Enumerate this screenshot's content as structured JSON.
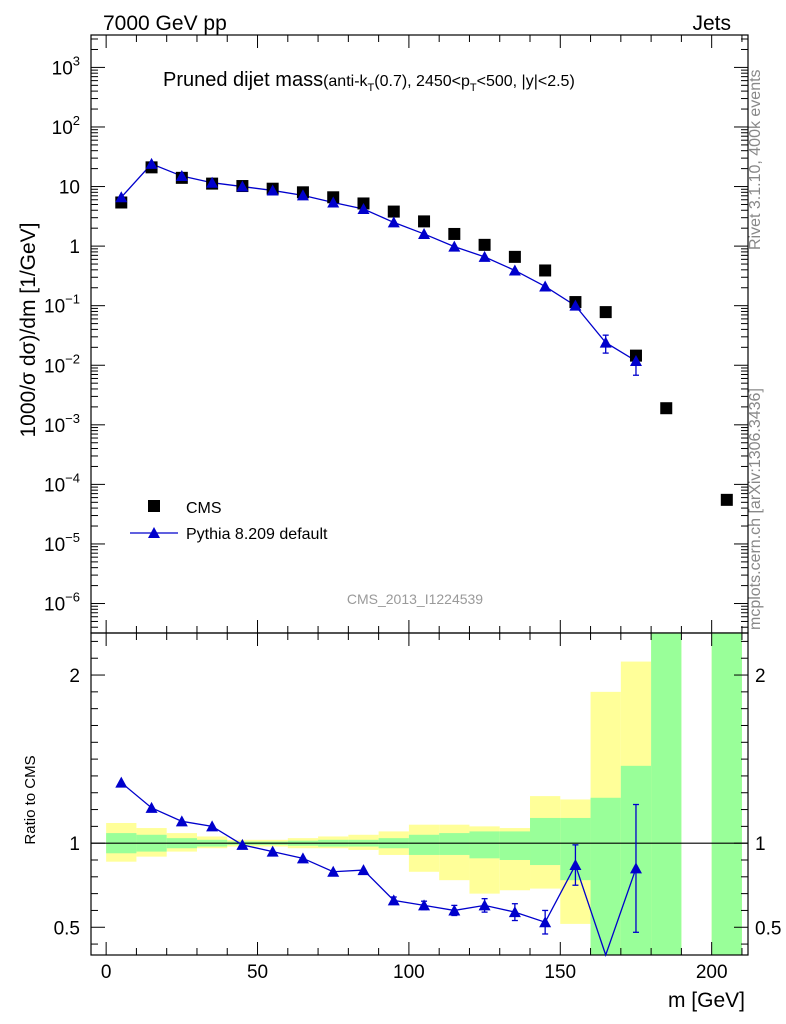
{
  "header": {
    "left": "7000 GeV pp",
    "right": "Jets"
  },
  "side": {
    "rivet": "Rivet 3.1.10,  400k events",
    "mcplots": "mcplots.cern.ch [arXiv:1306.3436]"
  },
  "chart_data": [
    {
      "type": "scatter",
      "title": "Pruned dijet mass",
      "subtitle_parts": [
        "(anti-k",
        "T",
        "(0.7), 2450<p",
        "T",
        "<500, |y|<2.5)"
      ],
      "ylabel": "1000/σ dσ)/dm [1/GeV]",
      "ylog": true,
      "xlim": [
        -5,
        212
      ],
      "ylim": [
        3.2e-07,
        3500
      ],
      "yticks": [
        {
          "v": 1e-06,
          "base": "10",
          "exp": "−6"
        },
        {
          "v": 1e-05,
          "base": "10",
          "exp": "−5"
        },
        {
          "v": 0.0001,
          "base": "10",
          "exp": "−4"
        },
        {
          "v": 0.001,
          "base": "10",
          "exp": "−3"
        },
        {
          "v": 0.01,
          "base": "10",
          "exp": "−2"
        },
        {
          "v": 0.1,
          "base": "10",
          "exp": "−1"
        },
        {
          "v": 1,
          "base": "1",
          "exp": ""
        },
        {
          "v": 10,
          "base": "10",
          "exp": ""
        },
        {
          "v": 100,
          "base": "10",
          "exp": "2"
        },
        {
          "v": 1000,
          "base": "10",
          "exp": "3"
        }
      ],
      "watermark": "CMS_2013_I1224539",
      "legend_position": "bottom-left",
      "series": [
        {
          "name": "CMS",
          "marker": "square",
          "color": "#000000",
          "x": [
            5,
            15,
            25,
            35,
            45,
            55,
            65,
            75,
            85,
            95,
            105,
            115,
            125,
            135,
            145,
            155,
            165,
            175,
            185,
            205
          ],
          "y": [
            5.4,
            21,
            14,
            11.2,
            10.2,
            9.2,
            8.0,
            6.6,
            5.2,
            3.8,
            2.6,
            1.6,
            1.05,
            0.66,
            0.39,
            0.115,
            0.078,
            0.0145,
            0.0019,
            5.5e-05
          ]
        },
        {
          "name": "Pythia 8.209 default",
          "marker": "triangle",
          "color": "#0000cc",
          "x": [
            5,
            15,
            25,
            35,
            45,
            55,
            65,
            75,
            85,
            95,
            105,
            115,
            125,
            135,
            145,
            155,
            165,
            175
          ],
          "y": [
            6.6,
            24,
            15,
            11.6,
            10.0,
            8.6,
            7.1,
            5.4,
            4.2,
            2.5,
            1.6,
            0.98,
            0.66,
            0.39,
            0.21,
            0.1,
            0.024,
            0.0118
          ],
          "yerr": [
            0,
            0,
            0,
            0,
            0,
            0,
            0,
            0,
            0,
            0,
            0,
            0,
            0,
            0,
            0,
            0,
            0.008,
            0.005
          ]
        }
      ]
    },
    {
      "type": "line",
      "ylabel": "Ratio to CMS",
      "xlabel": "m [GeV]",
      "xlim": [
        -5,
        212
      ],
      "ylim": [
        0.335,
        2.25
      ],
      "xticks": [
        0,
        50,
        100,
        150,
        200
      ],
      "yticks": [
        0.5,
        1,
        2
      ],
      "reference_line": 1,
      "bands": {
        "edges": [
          0,
          10,
          20,
          30,
          40,
          50,
          60,
          70,
          80,
          90,
          100,
          110,
          120,
          130,
          140,
          150,
          160,
          170,
          180,
          190,
          200,
          210
        ],
        "yellow": [
          [
            0.89,
            1.12
          ],
          [
            0.92,
            1.09
          ],
          [
            0.95,
            1.06
          ],
          [
            0.97,
            1.04
          ],
          [
            0.98,
            1.02
          ],
          [
            0.98,
            1.02
          ],
          [
            0.97,
            1.03
          ],
          [
            0.97,
            1.04
          ],
          [
            0.96,
            1.05
          ],
          [
            0.93,
            1.07
          ],
          [
            0.83,
            1.11
          ],
          [
            0.78,
            1.11
          ],
          [
            0.7,
            1.1
          ],
          [
            0.72,
            1.09
          ],
          [
            0.73,
            1.28
          ],
          [
            0.52,
            1.26
          ],
          [
            0.335,
            1.9
          ],
          [
            0.335,
            2.08
          ],
          [
            0.335,
            2.25
          ],
          null,
          [
            0.335,
            2.25
          ]
        ],
        "green": [
          [
            0.94,
            1.06
          ],
          [
            0.95,
            1.05
          ],
          [
            0.97,
            1.03
          ],
          [
            0.98,
            1.02
          ],
          [
            0.99,
            1.01
          ],
          [
            0.99,
            1.01
          ],
          [
            0.985,
            1.015
          ],
          [
            0.98,
            1.02
          ],
          [
            0.98,
            1.02
          ],
          [
            0.97,
            1.03
          ],
          [
            0.93,
            1.05
          ],
          [
            0.93,
            1.06
          ],
          [
            0.91,
            1.07
          ],
          [
            0.9,
            1.07
          ],
          [
            0.87,
            1.15
          ],
          [
            0.78,
            1.15
          ],
          [
            0.335,
            1.27
          ],
          [
            0.335,
            1.46
          ],
          [
            0.335,
            2.25
          ],
          null,
          [
            0.335,
            2.25
          ]
        ]
      },
      "series": [
        {
          "name": "Pythia 8.209 default",
          "color": "#0000cc",
          "x": [
            5,
            15,
            25,
            35,
            45,
            55,
            65,
            75,
            85,
            95,
            105,
            115,
            125,
            135,
            145,
            155,
            165,
            175
          ],
          "y": [
            1.36,
            1.21,
            1.13,
            1.1,
            0.99,
            0.95,
            0.91,
            0.83,
            0.84,
            0.66,
            0.63,
            0.6,
            0.63,
            0.59,
            0.53,
            0.87,
            0.3,
            0.85
          ],
          "yerr": [
            0,
            0,
            0,
            0,
            0,
            0,
            0,
            0,
            0,
            0.02,
            0.025,
            0.03,
            0.04,
            0.05,
            0.07,
            0.12,
            0,
            0.38
          ]
        }
      ]
    }
  ]
}
